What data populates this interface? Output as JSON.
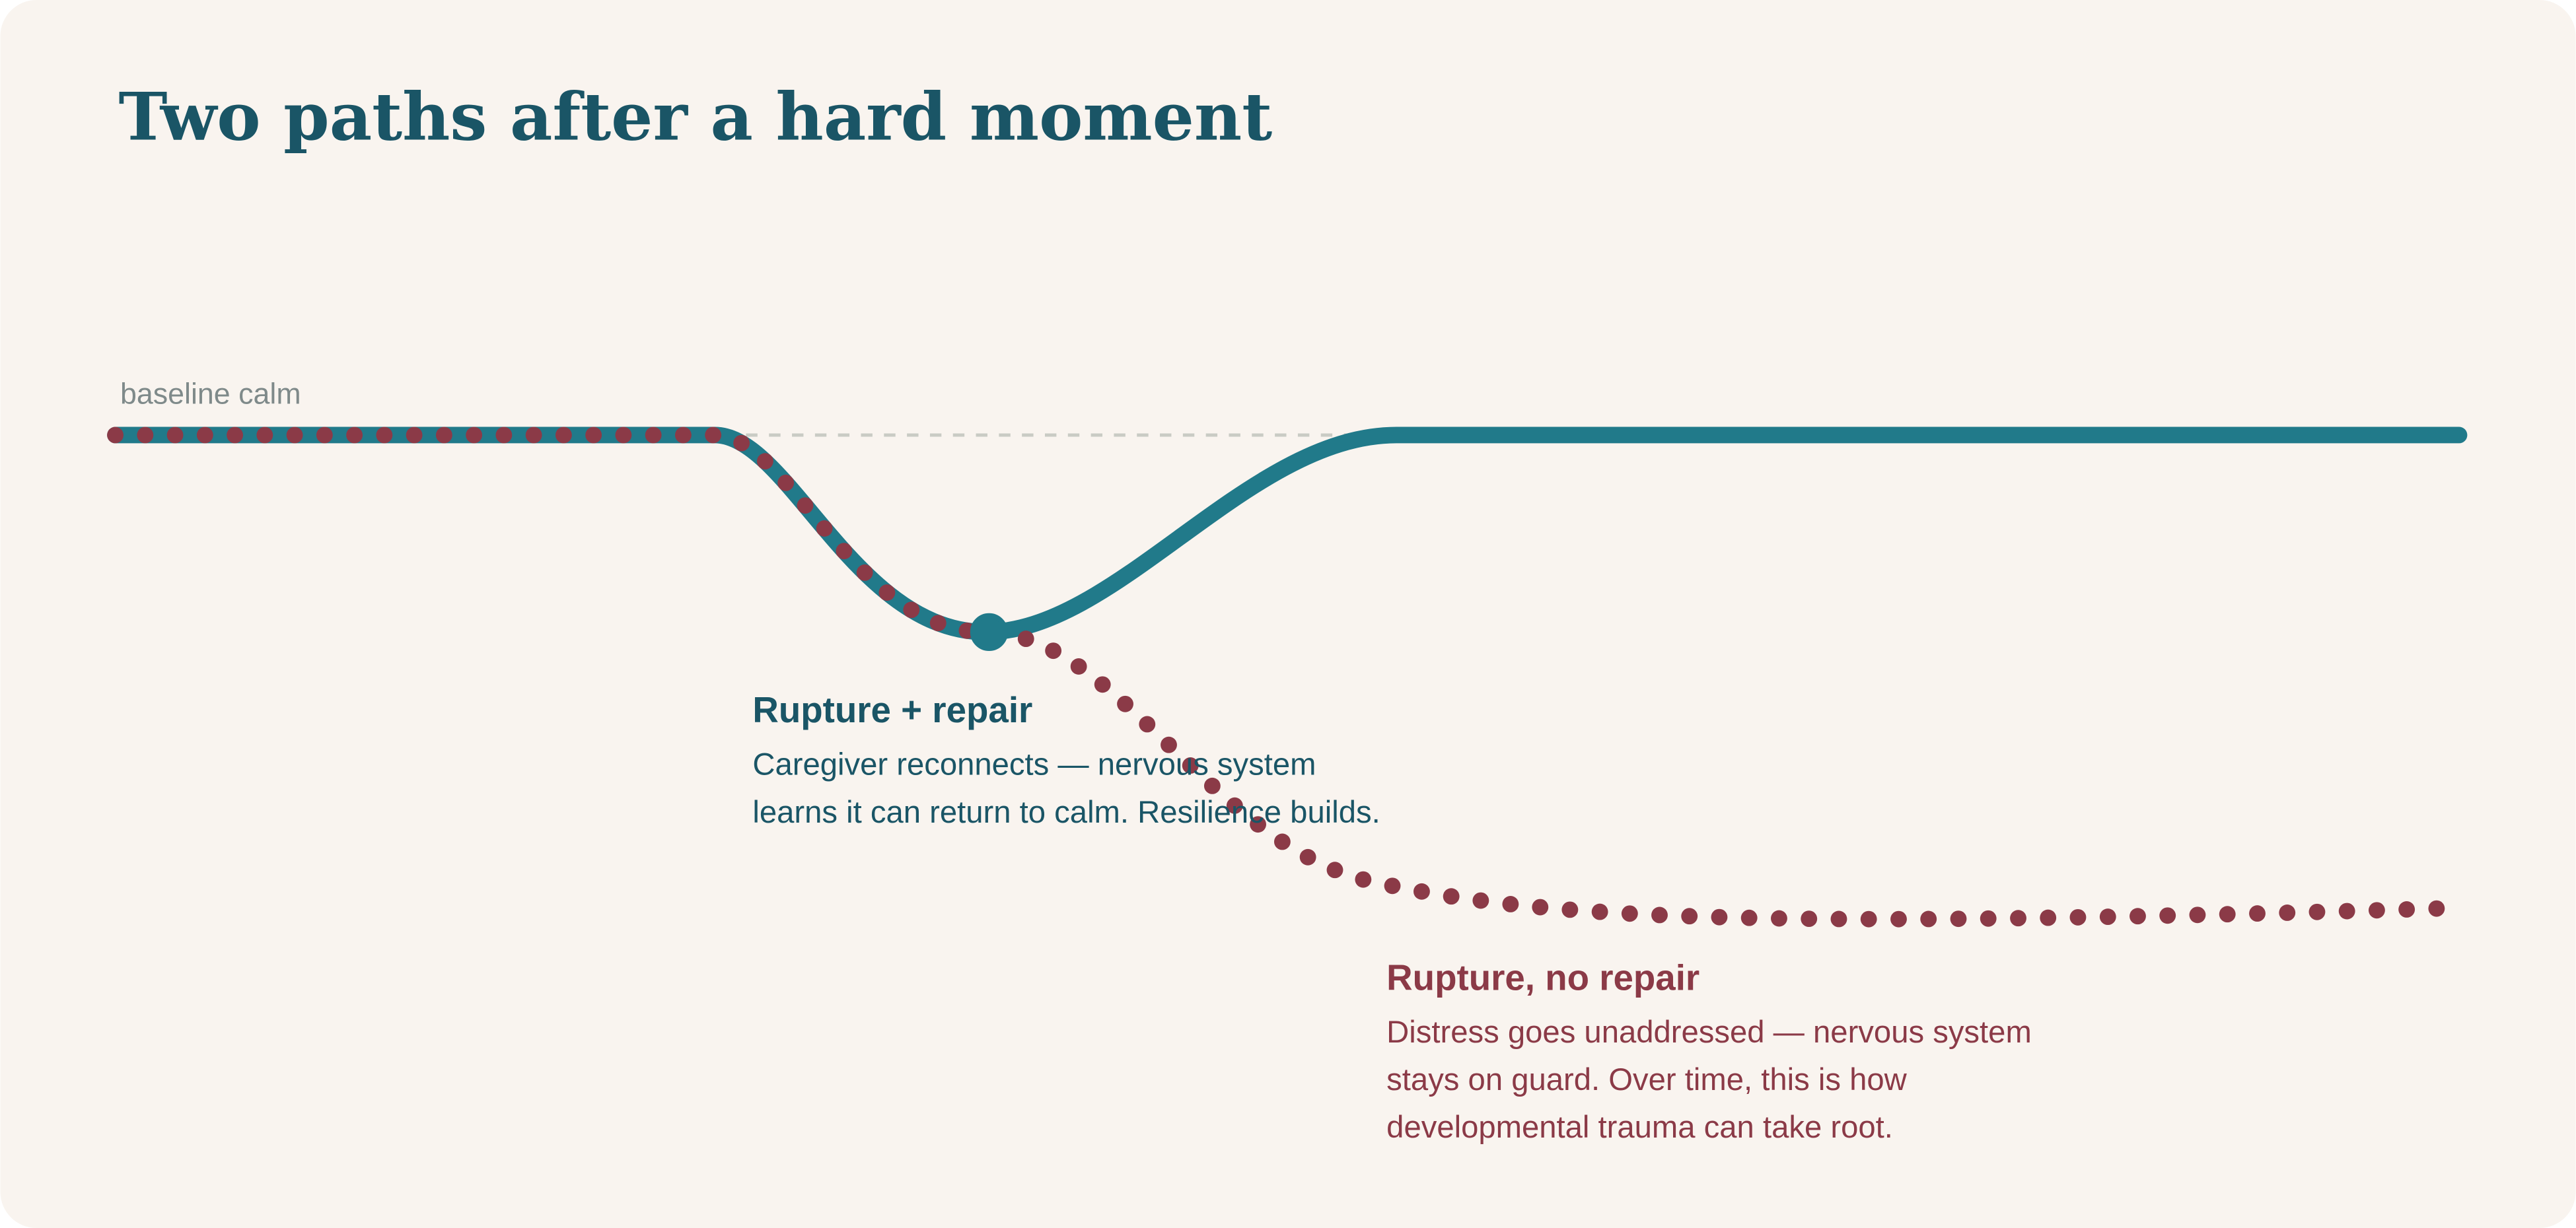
{
  "title": "Two paths after a hard moment",
  "baseline_label": "baseline calm",
  "annotations": [
    {
      "heading": "Rupture + repair",
      "lines": [
        "Caregiver reconnects — nervous system",
        "learns it can return to calm. Resilience builds."
      ]
    },
    {
      "heading": "Rupture, no repair",
      "lines": [
        "Distress goes unaddressed — nervous system",
        "stays on guard. Over time, this is how",
        "developmental trauma can take root."
      ]
    }
  ]
}
